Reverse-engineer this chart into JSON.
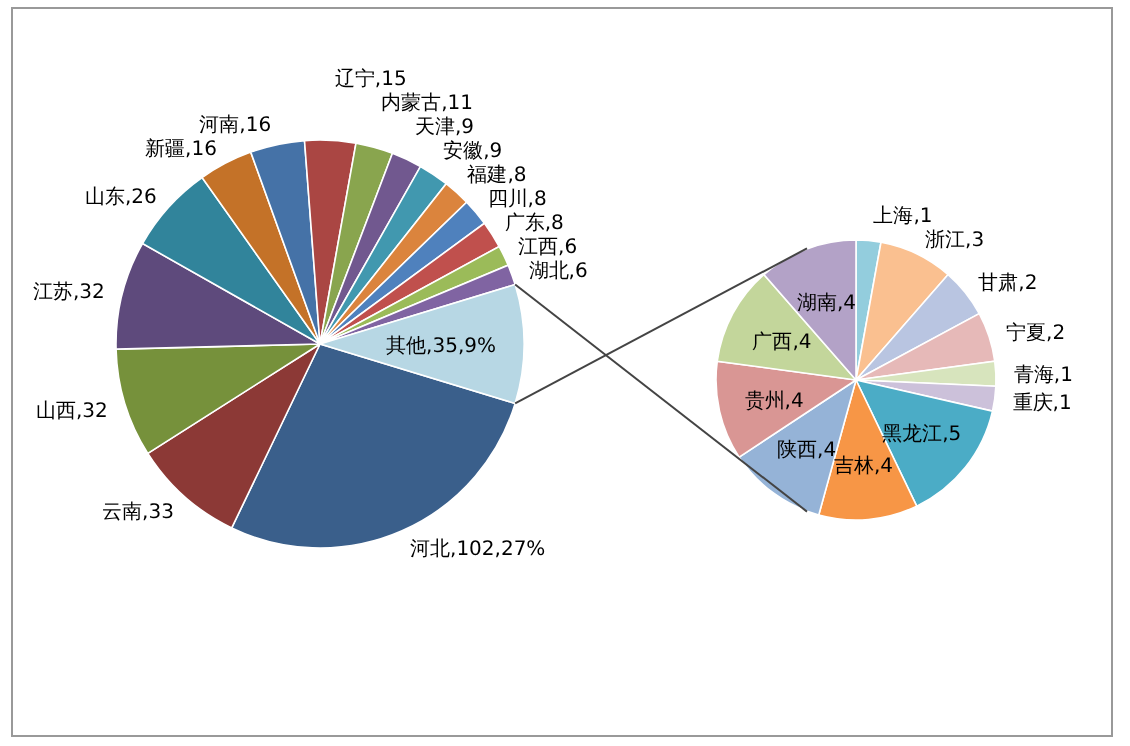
{
  "chart_data": [
    {
      "type": "pie",
      "categories": [
        "河北",
        "云南",
        "山西",
        "江苏",
        "山东",
        "新疆",
        "河南",
        "辽宁",
        "内蒙古",
        "天津",
        "安徽",
        "福建",
        "四川",
        "广东",
        "江西",
        "湖北",
        "其他"
      ],
      "values": [
        102,
        33,
        32,
        32,
        26,
        16,
        16,
        15,
        11,
        9,
        9,
        8,
        8,
        8,
        6,
        6,
        35
      ],
      "value_labels": [
        "102",
        "33",
        "32",
        "32",
        "26",
        "16",
        "16",
        "15",
        "11",
        "9",
        "9",
        "8",
        "8",
        "8",
        "6",
        "6",
        "35"
      ],
      "annotations": [
        {
          "text": ",27%",
          "x": "河北"
        },
        {
          "text": ",9%",
          "x": "其他"
        }
      ],
      "colors": [
        "#3a5f8b",
        "#8c3936",
        "#76913b",
        "#5e4a7c",
        "#31849b",
        "#c47228",
        "#4572a7",
        "#aa4643",
        "#89a54e",
        "#71588f",
        "#4198af",
        "#db843d",
        "#4f81bd",
        "#c0504d",
        "#9bbb59",
        "#8064a2",
        "#b7d7e4"
      ]
    },
    {
      "type": "pie",
      "categories": [
        "上海",
        "浙江",
        "甘肃",
        "宁夏",
        "青海",
        "重庆",
        "黑龙江",
        "吉林",
        "陕西",
        "贵州",
        "广西",
        "湖南"
      ],
      "values": [
        1,
        3,
        2,
        2,
        1,
        1,
        5,
        4,
        4,
        4,
        4,
        4
      ],
      "value_labels": [
        "1",
        "3",
        "2",
        "2",
        "1",
        "1",
        "5",
        "4",
        "4",
        "4",
        "4",
        "4"
      ],
      "colors": [
        "#93cddd",
        "#fac090",
        "#b9c5e1",
        "#e6b9b8",
        "#d7e4bd",
        "#ccc1da",
        "#4bacc6",
        "#f79646",
        "#95b3d7",
        "#d99694",
        "#c3d69b",
        "#b3a2c7"
      ]
    }
  ]
}
